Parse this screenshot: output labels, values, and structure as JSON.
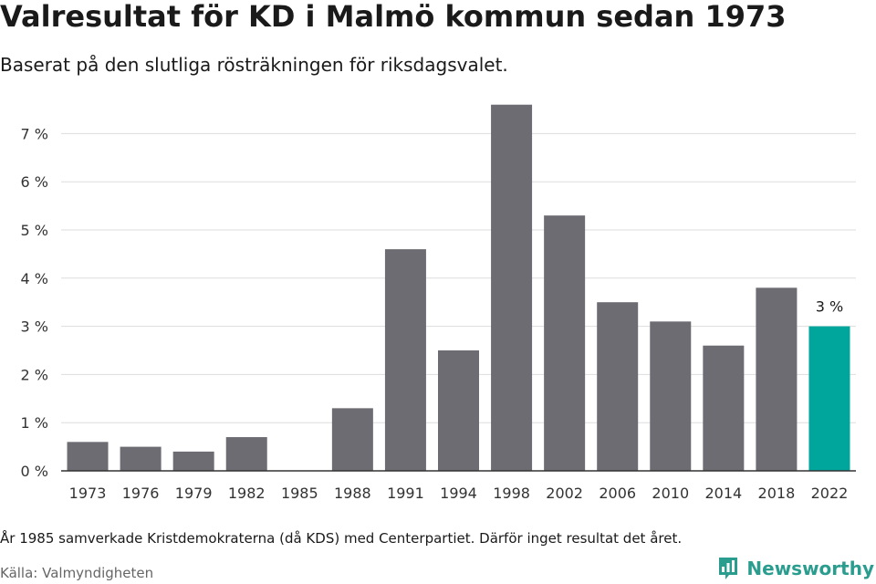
{
  "title": "Valresultat för KD i Malmö kommun sedan 1973",
  "subtitle": "Baserat på den slutliga rösträkningen för riksdagsvalet.",
  "note": "År 1985 samverkade Kristdemokraterna (då KDS) med Centerpartiet. Därför inget resultat det året.",
  "source": "Källa: Valmyndigheten",
  "brand": {
    "name": "Newsworthy",
    "icon": "bar-chart-logo-icon",
    "color": "#2a9d8f"
  },
  "colors": {
    "bar": "#6d6c72",
    "highlight": "#00a69c",
    "grid": "#dddddd",
    "axis": "#333333"
  },
  "chart_data": {
    "type": "bar",
    "categories": [
      "1973",
      "1976",
      "1979",
      "1982",
      "1985",
      "1988",
      "1991",
      "1994",
      "1998",
      "2002",
      "2006",
      "2010",
      "2014",
      "2018",
      "2022"
    ],
    "values": [
      0.6,
      0.5,
      0.4,
      0.7,
      null,
      1.3,
      4.6,
      2.5,
      7.6,
      5.3,
      3.5,
      3.1,
      2.6,
      3.8,
      3.0
    ],
    "highlight_index": 14,
    "data_labels": [
      {
        "category": "2022",
        "text": "3 %"
      }
    ],
    "yticks": [
      {
        "value": 0,
        "label": "0 %"
      },
      {
        "value": 1,
        "label": "1 %"
      },
      {
        "value": 2,
        "label": "2 %"
      },
      {
        "value": 3,
        "label": "3 %"
      },
      {
        "value": 4,
        "label": "4 %"
      },
      {
        "value": 5,
        "label": "5 %"
      },
      {
        "value": 6,
        "label": "6 %"
      },
      {
        "value": 7,
        "label": "7 %"
      }
    ],
    "ylim": [
      0,
      7.6
    ],
    "grid": true,
    "legend": "none"
  }
}
